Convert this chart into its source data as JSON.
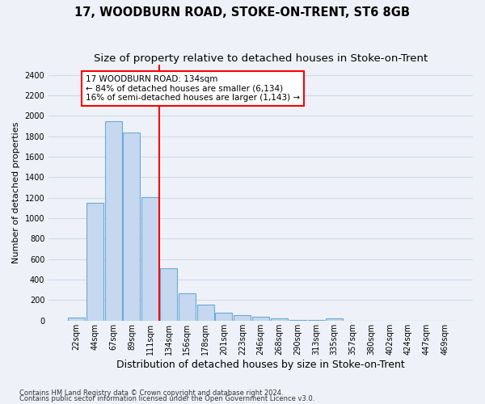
{
  "title": "17, WOODBURN ROAD, STOKE-ON-TRENT, ST6 8GB",
  "subtitle": "Size of property relative to detached houses in Stoke-on-Trent",
  "xlabel": "Distribution of detached houses by size in Stoke-on-Trent",
  "ylabel": "Number of detached properties",
  "bar_labels": [
    "22sqm",
    "44sqm",
    "67sqm",
    "89sqm",
    "111sqm",
    "134sqm",
    "156sqm",
    "178sqm",
    "201sqm",
    "223sqm",
    "246sqm",
    "268sqm",
    "290sqm",
    "313sqm",
    "335sqm",
    "357sqm",
    "380sqm",
    "402sqm",
    "424sqm",
    "447sqm",
    "469sqm"
  ],
  "bar_values": [
    30,
    1150,
    1950,
    1840,
    1210,
    510,
    265,
    155,
    80,
    50,
    40,
    20,
    10,
    10,
    20,
    0,
    0,
    0,
    0,
    0,
    0
  ],
  "bar_color": "#c5d8f0",
  "bar_edge_color": "#6aaad4",
  "vline_color": "red",
  "vline_index": 4.5,
  "annotation_text": "17 WOODBURN ROAD: 134sqm\n← 84% of detached houses are smaller (6,134)\n16% of semi-detached houses are larger (1,143) →",
  "annotation_box_color": "white",
  "annotation_box_edge_color": "red",
  "ylim": [
    0,
    2500
  ],
  "yticks": [
    0,
    200,
    400,
    600,
    800,
    1000,
    1200,
    1400,
    1600,
    1800,
    2000,
    2200,
    2400
  ],
  "footnote1": "Contains HM Land Registry data © Crown copyright and database right 2024.",
  "footnote2": "Contains public sector information licensed under the Open Government Licence v3.0.",
  "background_color": "#eef2f8",
  "grid_color": "#d0d8e8",
  "title_fontsize": 10.5,
  "subtitle_fontsize": 9.5,
  "xlabel_fontsize": 9,
  "ylabel_fontsize": 8,
  "tick_fontsize": 7,
  "annot_fontsize": 7.5,
  "footnote_fontsize": 6
}
